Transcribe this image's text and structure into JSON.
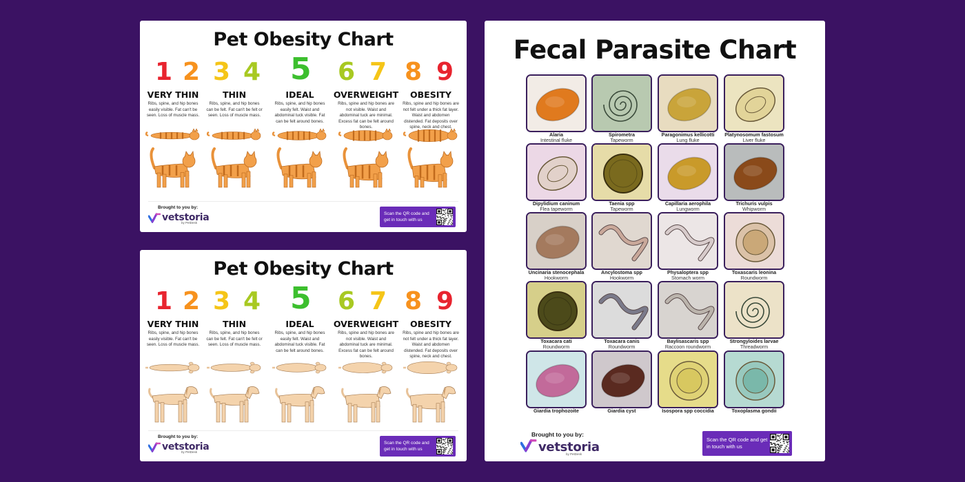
{
  "obesity_charts": [
    {
      "id": "cat",
      "title": "Pet Obesity Chart",
      "numbers": [
        "1",
        "2",
        "3",
        "4",
        "5",
        "6",
        "7",
        "8",
        "9"
      ],
      "number_colors": [
        "#e8242f",
        "#f7921e",
        "#f5c518",
        "#a8c922",
        "#3cbf2e",
        "#a8c922",
        "#f5c518",
        "#f7921e",
        "#e8242f"
      ],
      "categories": [
        {
          "label": "VERY THIN",
          "desc": "Ribs, spine, and hip bones easily visible. Fat can't be seen. Loss of muscle mass."
        },
        {
          "label": "THIN",
          "desc": "Ribs, spine, and hip bones can be felt. Fat can't be felt or seen. Loss of muscle mass."
        },
        {
          "label": "IDEAL",
          "desc": "Ribs, spine, and hip bones easily felt. Waist and abdominal tuck visible. Fat can be felt around bones."
        },
        {
          "label": "OVERWEIGHT",
          "desc": "Ribs, spine and hip bones are not visible. Waist and abdominal tuck are minimal. Excess fat can be felt around bones."
        },
        {
          "label": "OBESITY",
          "desc": "Ribs, spine and hip bones are not felt under a thick fat layer. Waist and abdomen distended. Fat deposits over spine, neck and chest."
        }
      ],
      "animal_body_ratios": [
        0.3,
        0.4,
        0.55,
        0.75,
        0.95
      ],
      "brand_by": "Brought to you by:",
      "brand_name": "vetstoria",
      "brand_sub": "by PetDesk",
      "qr_text": "Scan the QR code and get in touch with us",
      "icon": "qr-code-icon"
    },
    {
      "id": "dog",
      "title": "Pet Obesity Chart",
      "numbers": [
        "1",
        "2",
        "3",
        "4",
        "5",
        "6",
        "7",
        "8",
        "9"
      ],
      "number_colors": [
        "#e8242f",
        "#f7921e",
        "#f5c518",
        "#a8c922",
        "#3cbf2e",
        "#a8c922",
        "#f5c518",
        "#f7921e",
        "#e8242f"
      ],
      "categories": [
        {
          "label": "VERY THIN",
          "desc": "Ribs, spine, and hip bones easily visible. Fat can't be seen. Loss of muscle mass."
        },
        {
          "label": "THIN",
          "desc": "Ribs, spine, and hip bones can be felt. Fat can't be felt or seen. Loss of muscle mass."
        },
        {
          "label": "IDEAL",
          "desc": "Ribs, spine, and hip bones easily felt. Waist and abdominal tuck visible. Fat can be felt around bones."
        },
        {
          "label": "OVERWEIGHT",
          "desc": "Ribs, spine and hip bones are not visible. Waist and abdominal tuck are minimal. Excess fat can be felt around bones."
        },
        {
          "label": "OBESITY",
          "desc": "Ribs, spine and hip bones are not felt under a thick fat layer. Waist and abdomen distended. Fat deposits over spine, neck and chest."
        }
      ],
      "animal_body_ratios": [
        0.3,
        0.4,
        0.55,
        0.75,
        0.95
      ],
      "brand_by": "Brought to you by:",
      "brand_name": "vetstoria",
      "brand_sub": "by PetDesk",
      "qr_text": "Scan the QR code and get in touch with us",
      "icon": "qr-code-icon"
    }
  ],
  "fecal_chart": {
    "title": "Fecal Parasite Chart",
    "parasites": [
      {
        "name": "Alaria",
        "type": "Intestinal fluke",
        "bg": "#f2ece6",
        "shape": "oval",
        "fill": "#e07a1e"
      },
      {
        "name": "Spirometra",
        "type": "Tapeworm",
        "bg": "#b8c9b0",
        "shape": "spiral",
        "fill": "#9fb59a"
      },
      {
        "name": "Paragonimus kellicotti",
        "type": "Lung fluke",
        "bg": "#e8dcc0",
        "shape": "oval",
        "fill": "#c9a43a"
      },
      {
        "name": "Platynosomum fastosum",
        "type": "Liver fluke",
        "bg": "#ece4c0",
        "shape": "oval-outline",
        "fill": "#d8c06a"
      },
      {
        "name": "Dipylidium caninum",
        "type": "Flea tapeworm",
        "bg": "#ecd8e6",
        "shape": "oval-outline",
        "fill": "#d7c9a8"
      },
      {
        "name": "Taenia spp",
        "type": "Tapeworm",
        "bg": "#e6dca8",
        "shape": "circle",
        "fill": "#7a6a1e"
      },
      {
        "name": "Capillaria aerophila",
        "type": "Lungworm",
        "bg": "#eadcea",
        "shape": "oval",
        "fill": "#c99a2a"
      },
      {
        "name": "Trichuris vulpis",
        "type": "Whipworm",
        "bg": "#b9bcbc",
        "shape": "oval",
        "fill": "#8a4a1a"
      },
      {
        "name": "Uncinaria stenocephala",
        "type": "Hookworm",
        "bg": "#d8d0c8",
        "shape": "oval",
        "fill": "#a47a5e"
      },
      {
        "name": "Ancylostoma spp",
        "type": "Hookworm",
        "bg": "#e0d8d0",
        "shape": "worm",
        "fill": "#c9a89a"
      },
      {
        "name": "Physaloptera spp",
        "type": "Stomach worm",
        "bg": "#ece6e6",
        "shape": "worm",
        "fill": "#d8cccc"
      },
      {
        "name": "Toxascaris leonina",
        "type": "Roundworm",
        "bg": "#ecdcd8",
        "shape": "circle-outline",
        "fill": "#caa878"
      },
      {
        "name": "Toxacara cati",
        "type": "Roundworm",
        "bg": "#d6cf8a",
        "shape": "circle",
        "fill": "#4c4a1a"
      },
      {
        "name": "Toxacara canis",
        "type": "Roundworm",
        "bg": "#dcdcdc",
        "shape": "worm",
        "fill": "#7a7a8a"
      },
      {
        "name": "Baylisascaris spp",
        "type": "Raccoon roundworm",
        "bg": "#d8d4d0",
        "shape": "worm",
        "fill": "#bbb4ac"
      },
      {
        "name": "Strongyloides larvae",
        "type": "Threadworm",
        "bg": "#ece2c8",
        "shape": "spiral",
        "fill": "#c8b48a"
      },
      {
        "name": "Giardia trophozoite",
        "type": "",
        "bg": "#cfe6e8",
        "shape": "oval",
        "fill": "#c26a9a"
      },
      {
        "name": "Giardia cyst",
        "type": "",
        "bg": "#cfc8cc",
        "shape": "oval",
        "fill": "#5a2a20"
      },
      {
        "name": "Isospora spp coccidia",
        "type": "",
        "bg": "#e6dc8a",
        "shape": "circle-outline",
        "fill": "#d8c860"
      },
      {
        "name": "Toxoplasma gondii",
        "type": "",
        "bg": "#b6dad2",
        "shape": "circle-outline",
        "fill": "#7ab8aa"
      }
    ],
    "brand_by": "Brought to you by:",
    "brand_name": "vetstoria",
    "brand_sub": "by PetDesk",
    "qr_text": "Scan the QR code and get in touch with us",
    "icon": "qr-code-icon"
  }
}
